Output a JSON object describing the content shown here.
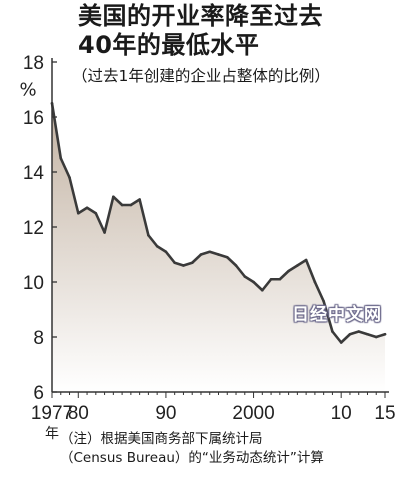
{
  "header": {
    "title_line1": "美国的开业率降至过去",
    "title_line2": "40年的最低水平",
    "subtitle": "（过去1年创建的企业占整体的比例）"
  },
  "note": {
    "line1": "（注）根据美国商务部下属统计局",
    "line2": "（Census Bureau）的“业务动态统计”计算"
  },
  "watermark": "日经中文网",
  "colors": {
    "fill_top": "#c2b2a2",
    "fill_bottom": "#ffffff",
    "line": "#3a3a3a"
  },
  "chart_data": {
    "type": "area",
    "title": "美国的开业率降至过去40年的最低水平",
    "subtitle": "（过去1年创建的企业占整体的比例）",
    "ylabel": "%",
    "xlabel": "年",
    "ylim": [
      6,
      18
    ],
    "xlim": [
      1977,
      2015
    ],
    "y_ticks": [
      6,
      8,
      10,
      12,
      14,
      16,
      18
    ],
    "x_ticks": [
      {
        "value": 1977,
        "label": "1977"
      },
      {
        "value": 1980,
        "label": "80"
      },
      {
        "value": 1990,
        "label": "90"
      },
      {
        "value": 2000,
        "label": "2000"
      },
      {
        "value": 2010,
        "label": "10"
      },
      {
        "value": 2015,
        "label": "15"
      }
    ],
    "x_unit": "年",
    "y_unit": "%",
    "grid": false,
    "series": [
      {
        "x": [
          1977,
          1978,
          1979,
          1980,
          1981,
          1982,
          1983,
          1984,
          1985,
          1986,
          1987,
          1988,
          1989,
          1990,
          1991,
          1992,
          1993,
          1994,
          1995,
          1996,
          1997,
          1998,
          1999,
          2000,
          2001,
          2002,
          2003,
          2004,
          2005,
          2006,
          2007,
          2008,
          2009,
          2010,
          2011,
          2012,
          2013,
          2014,
          2015
        ],
        "values": [
          16.5,
          14.5,
          13.8,
          12.5,
          12.7,
          12.5,
          11.8,
          13.1,
          12.8,
          12.8,
          13.0,
          11.7,
          11.3,
          11.1,
          10.7,
          10.6,
          10.7,
          11.0,
          11.1,
          11.0,
          10.9,
          10.6,
          10.2,
          10.0,
          9.7,
          10.1,
          10.1,
          10.4,
          10.6,
          10.8,
          10.0,
          9.3,
          8.2,
          7.8,
          8.1,
          8.2,
          8.1,
          8.0,
          8.1
        ]
      }
    ]
  }
}
